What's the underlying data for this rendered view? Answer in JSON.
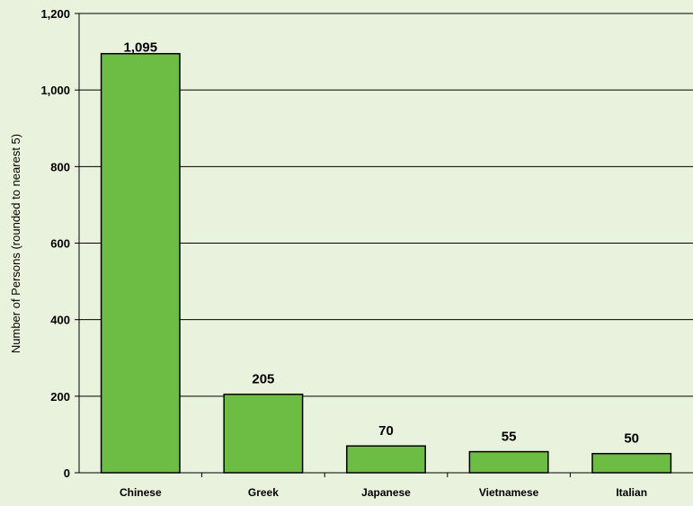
{
  "chart_data": {
    "type": "bar",
    "categories": [
      "Chinese",
      "Greek",
      "Japanese",
      "Vietnamese",
      "Italian"
    ],
    "values": [
      1095,
      205,
      70,
      55,
      50
    ],
    "data_labels": [
      "1,095",
      "205",
      "70",
      "55",
      "50"
    ],
    "title": "",
    "xlabel": "",
    "ylabel": "Number of Persons (rounded to nearest 5)",
    "ylim": [
      0,
      1200
    ],
    "yticks": [
      0,
      200,
      400,
      600,
      800,
      1000,
      1200
    ],
    "ytick_labels": [
      "0",
      "200",
      "400",
      "600",
      "800",
      "1,000",
      "1,200"
    ],
    "grid": true,
    "legend": "none",
    "colors": {
      "bar": "#6dbd45",
      "bar_border": "#000000",
      "background": "#e9f2dc",
      "gridline": "#000000"
    }
  }
}
